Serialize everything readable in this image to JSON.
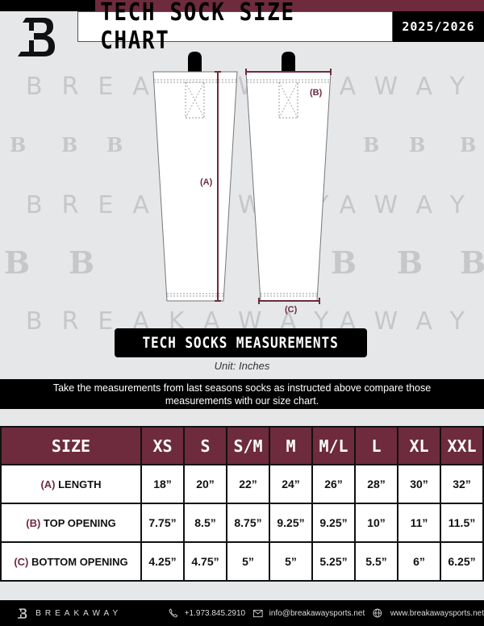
{
  "header": {
    "title": "TECH SOCK SIZE CHART",
    "season": "2025/2026",
    "logo_text": "B"
  },
  "watermark": {
    "text": "BREAKAWAY",
    "logo": "B"
  },
  "diagram": {
    "label_a": "(A)",
    "label_b": "(B)",
    "label_c": "(C)"
  },
  "section": {
    "title": "TECH SOCKS MEASUREMENTS",
    "unit": "Unit: Inches",
    "instructions": "Take the measurements from last seasons socks as instructed above compare those measurements  with our size chart."
  },
  "table": {
    "header": [
      "SIZE",
      "XS",
      "S",
      "S/M",
      "M",
      "M/L",
      "L",
      "XL",
      "XXL"
    ],
    "rows": [
      {
        "letter": "(A)",
        "label": "LENGTH",
        "values": [
          "18”",
          "20”",
          "22”",
          "24”",
          "26”",
          "28”",
          "30”",
          "32”"
        ]
      },
      {
        "letter": "(B)",
        "label": "TOP OPENING",
        "values": [
          "7.75”",
          "8.5”",
          "8.75”",
          "9.25”",
          "9.25”",
          "10”",
          "11”",
          "11.5”"
        ]
      },
      {
        "letter": "(C)",
        "label": "BOTTOM OPENING",
        "values": [
          "4.25”",
          "4.75”",
          "5”",
          "5”",
          "5.25”",
          "5.5”",
          "6”",
          "6.25”"
        ]
      }
    ]
  },
  "footer": {
    "brand": "BREAKAWAY",
    "phone": "+1.973.845.2910",
    "email": "info@breakawaysports.net",
    "website": "www.breakawaysports.net",
    "icons": [
      "phone-icon",
      "mail-icon",
      "globe-icon"
    ]
  },
  "colors": {
    "maroon": "#6d2b3d",
    "background": "#e6e7e9",
    "black": "#000000"
  }
}
